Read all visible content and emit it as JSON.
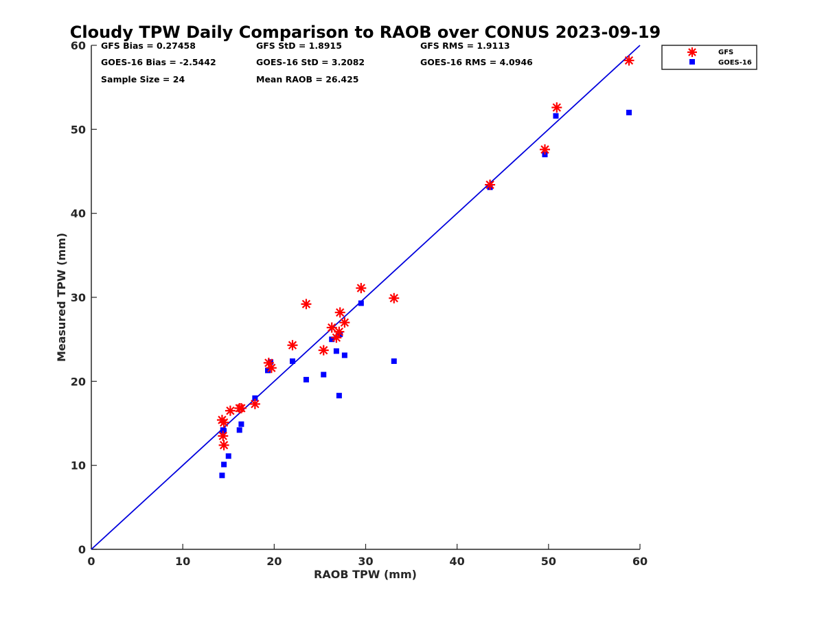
{
  "chart_data": {
    "type": "scatter",
    "title": "Cloudy TPW Daily Comparison to RAOB over CONUS 2023-09-19",
    "xlabel": "RAOB TPW (mm)",
    "ylabel": "Measured TPW (mm)",
    "xlim": [
      0,
      60
    ],
    "ylim": [
      0,
      60
    ],
    "xticks": [
      "0",
      "10",
      "20",
      "30",
      "40",
      "50",
      "60"
    ],
    "yticks": [
      "0",
      "10",
      "20",
      "30",
      "40",
      "50",
      "60"
    ],
    "grid": false,
    "legend_position": "top-right outside",
    "reference_line": {
      "x": [
        0,
        60
      ],
      "y": [
        0,
        60
      ],
      "color": "#0000dd"
    },
    "stats": {
      "gfs_bias": "GFS Bias = 0.27458",
      "gfs_std": "GFS StD = 1.8915",
      "gfs_rms": "GFS RMS = 1.9113",
      "goes_bias": "GOES-16 Bias = -2.5442",
      "goes_std": "GOES-16 StD = 3.2082",
      "goes_rms": "GOES-16 RMS = 4.0946",
      "sample_size": "Sample Size = 24",
      "mean_raob": "Mean RAOB = 26.425"
    },
    "series": [
      {
        "name": "GFS",
        "marker": "asterisk",
        "color": "#ff0000",
        "points": [
          [
            14.3,
            15.4
          ],
          [
            14.5,
            15.1
          ],
          [
            14.4,
            13.5
          ],
          [
            14.5,
            12.4
          ],
          [
            15.2,
            16.5
          ],
          [
            16.2,
            16.8
          ],
          [
            16.4,
            16.8
          ],
          [
            17.9,
            17.3
          ],
          [
            19.4,
            22.2
          ],
          [
            19.7,
            21.6
          ],
          [
            22.0,
            24.3
          ],
          [
            23.5,
            29.2
          ],
          [
            25.4,
            23.7
          ],
          [
            26.3,
            26.4
          ],
          [
            26.8,
            25.2
          ],
          [
            27.1,
            25.9
          ],
          [
            27.2,
            28.2
          ],
          [
            27.7,
            27.0
          ],
          [
            29.5,
            31.1
          ],
          [
            33.1,
            29.9
          ],
          [
            43.6,
            43.4
          ],
          [
            49.6,
            47.6
          ],
          [
            50.9,
            52.6
          ],
          [
            58.8,
            58.2
          ]
        ]
      },
      {
        "name": "GOES-16",
        "marker": "square",
        "color": "#0000ff",
        "points": [
          [
            14.3,
            8.8
          ],
          [
            14.5,
            10.1
          ],
          [
            14.4,
            14.2
          ],
          [
            14.5,
            14.1
          ],
          [
            15.0,
            11.1
          ],
          [
            16.2,
            14.2
          ],
          [
            16.4,
            14.9
          ],
          [
            17.9,
            18.0
          ],
          [
            19.3,
            21.3
          ],
          [
            19.6,
            22.3
          ],
          [
            22.0,
            22.4
          ],
          [
            23.5,
            20.2
          ],
          [
            25.4,
            20.8
          ],
          [
            26.3,
            25.0
          ],
          [
            26.8,
            23.6
          ],
          [
            27.1,
            18.3
          ],
          [
            27.2,
            25.6
          ],
          [
            27.7,
            23.1
          ],
          [
            29.5,
            29.3
          ],
          [
            33.1,
            22.4
          ],
          [
            43.6,
            43.1
          ],
          [
            49.6,
            47.0
          ],
          [
            50.8,
            51.6
          ],
          [
            58.8,
            52.0
          ]
        ]
      }
    ]
  }
}
